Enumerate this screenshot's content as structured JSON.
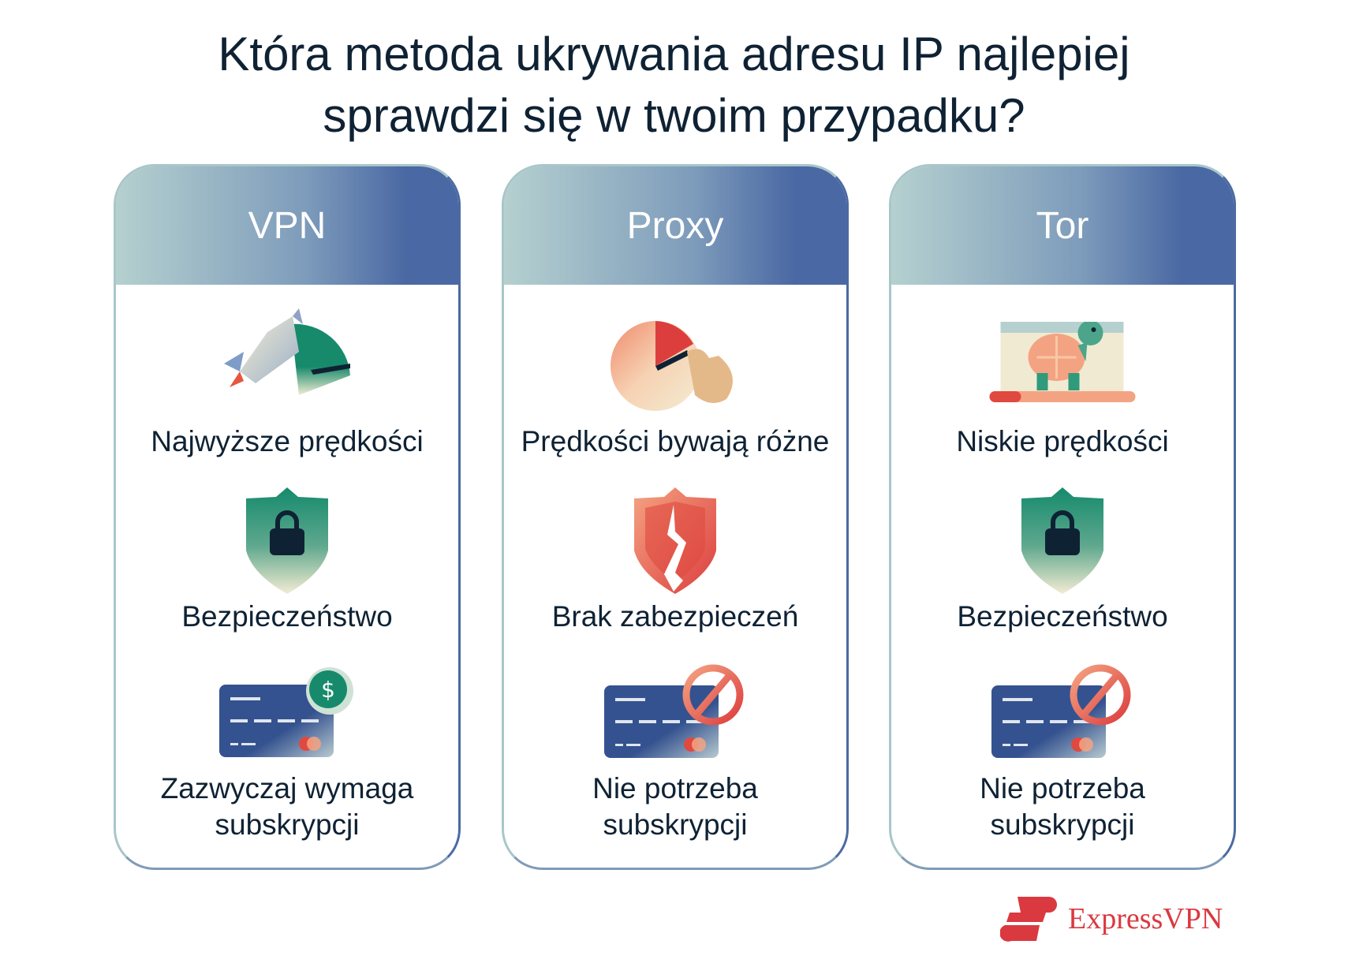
{
  "title": {
    "line1": "Która metoda ukrywania adresu IP najlepiej",
    "line2": "sprawdzi się w twoim przypadku?"
  },
  "cards": [
    {
      "header": "VPN",
      "speed": {
        "icon": "rocket-speedometer-icon",
        "label": "Najwyższe prędkości"
      },
      "security": {
        "icon": "shield-lock-icon",
        "label": "Bezpieczeństwo"
      },
      "cost": {
        "icon": "credit-card-dollar-icon",
        "line1": "Zazwyczaj wymaga",
        "line2": "subskrypcji"
      }
    },
    {
      "header": "Proxy",
      "speed": {
        "icon": "hand-speedometer-icon",
        "label": "Prędkości bywają różne"
      },
      "security": {
        "icon": "broken-shield-icon",
        "label": "Brak zabezpieczeń"
      },
      "cost": {
        "icon": "credit-card-forbidden-icon",
        "line1": "Nie potrzeba",
        "line2": "subskrypcji"
      }
    },
    {
      "header": "Tor",
      "speed": {
        "icon": "turtle-laptop-icon",
        "label": "Niskie prędkości"
      },
      "security": {
        "icon": "shield-lock-icon",
        "label": "Bezpieczeństwo"
      },
      "cost": {
        "icon": "credit-card-forbidden-icon",
        "line1": "Nie potrzeba",
        "line2": "subskrypcji"
      }
    }
  ],
  "brand": {
    "name": "ExpressVPN",
    "color": "#da3940"
  },
  "colors": {
    "header_start": "#b5d0cf",
    "header_end": "#4a68a3",
    "text": "#0f2234",
    "green": "#178a6c",
    "red": "#e0493f",
    "card_blue": "#34528f"
  }
}
